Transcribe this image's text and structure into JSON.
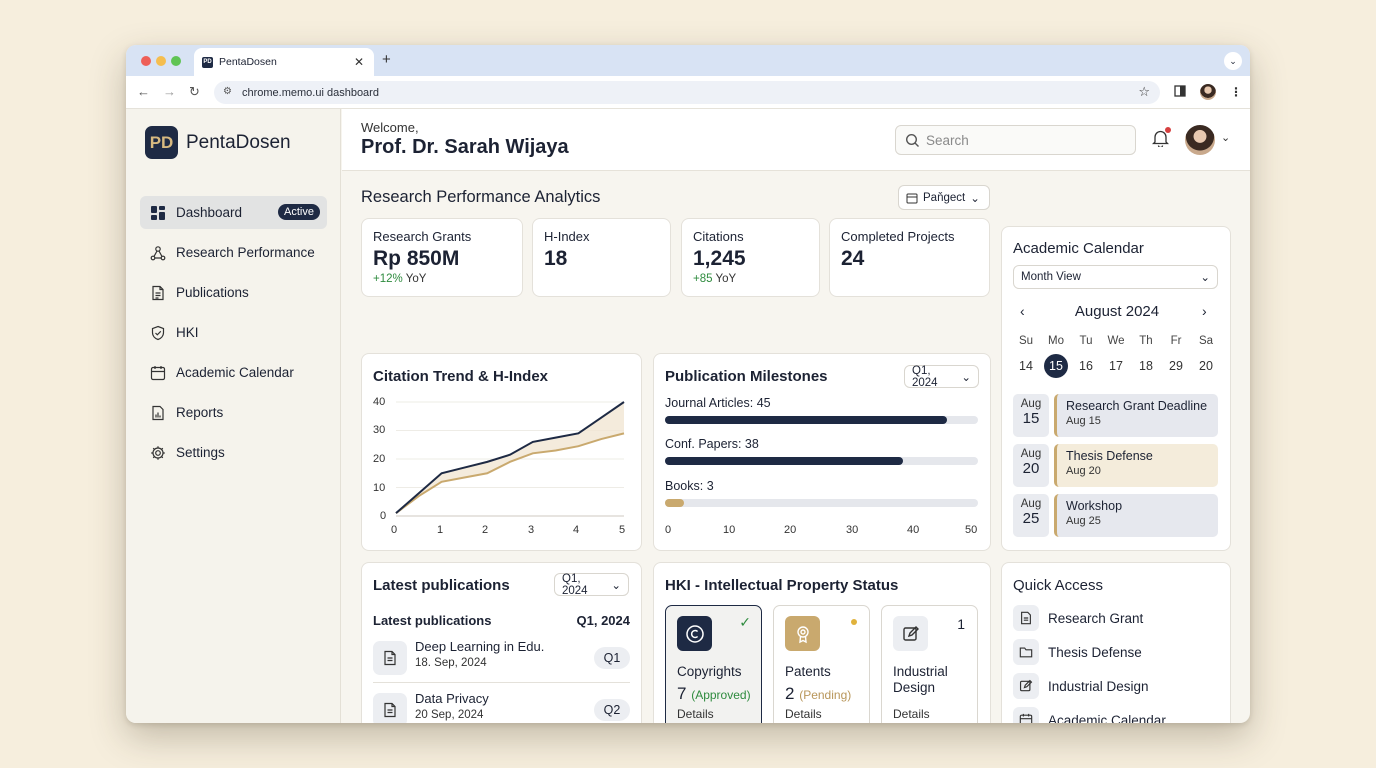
{
  "browser": {
    "tab_title": "PentaDosen",
    "tab_favicon": "PD",
    "url": "chrome.memo.ui dashboard"
  },
  "sidebar": {
    "logo_mark": "PD",
    "app_name": "PentaDosen",
    "active_badge": "Active",
    "items": [
      {
        "label": "Dashboard",
        "icon": "grid-icon"
      },
      {
        "label": "Research Performance",
        "icon": "network-icon"
      },
      {
        "label": "Publications",
        "icon": "document-icon"
      },
      {
        "label": "HKI",
        "icon": "shield-icon"
      },
      {
        "label": "Academic Calendar",
        "icon": "calendar-icon"
      },
      {
        "label": "Reports",
        "icon": "report-icon"
      },
      {
        "label": "Settings",
        "icon": "gear-icon"
      }
    ]
  },
  "header": {
    "welcome": "Welcome,",
    "user_name": "Prof. Dr. Sarah Wijaya",
    "search_placeholder": "Search"
  },
  "analytics": {
    "title": "Research Performance Analytics",
    "filter": "Paňgect",
    "kpis": [
      {
        "label": "Research Grants",
        "value": "Rp 850M",
        "delta": "+12%",
        "delta_suffix": "YoY"
      },
      {
        "label": "H-Index",
        "value": "18"
      },
      {
        "label": "Citations",
        "value": "1,245",
        "delta": "+85",
        "delta_suffix": "YoY"
      },
      {
        "label": "Completed Projects",
        "value": "24"
      }
    ]
  },
  "citation_chart": {
    "title": "Citation Trend & H-Index",
    "y_ticks": [
      "40",
      "30",
      "20",
      "10",
      "0"
    ],
    "x_ticks": [
      "0",
      "1",
      "2",
      "3",
      "4",
      "5"
    ]
  },
  "chart_data": {
    "type": "line",
    "title": "Citation Trend & H-Index",
    "x": [
      0,
      0.5,
      1,
      1.5,
      2,
      2.5,
      3,
      3.5,
      4,
      4.5,
      5
    ],
    "ylim": [
      0,
      40
    ],
    "xlim": [
      0,
      5
    ],
    "series": [
      {
        "values": [
          1,
          8,
          15,
          17,
          19,
          21.5,
          26,
          27.5,
          29,
          34.5,
          40
        ],
        "color": "#1e2a44"
      },
      {
        "values": [
          1,
          7,
          12,
          13.5,
          15,
          19,
          22,
          23,
          24.5,
          27,
          29
        ],
        "color": "#c9a96e",
        "fill": "#f1e6d3"
      }
    ]
  },
  "milestones": {
    "title": "Publication Milestones",
    "filter": "Q1, 2024",
    "items": [
      {
        "label": "Journal Articles:",
        "value": "45",
        "num": 45,
        "color": "#1e2a44"
      },
      {
        "label": "Conf. Papers:",
        "value": "38",
        "num": 38,
        "color": "#1e2a44"
      },
      {
        "label": "Books:",
        "value": "3",
        "num": 3,
        "color": "#c9a96e"
      }
    ],
    "axis": [
      "0",
      "10",
      "20",
      "30",
      "40",
      "50"
    ],
    "max": 50
  },
  "calendar": {
    "title": "Academic Calendar",
    "view": "Month View",
    "month": "August 2024",
    "dows": [
      "Su",
      "Mo",
      "Tu",
      "We",
      "Th",
      "Fr",
      "Sa"
    ],
    "days": [
      "14",
      "15",
      "16",
      "17",
      "18",
      "29",
      "20"
    ],
    "selected": "15",
    "events": [
      {
        "mon": "Aug",
        "day": "15",
        "title": "Research Grant Deadline",
        "sub": "Aug 15",
        "bg": "#e6e8ee"
      },
      {
        "mon": "Aug",
        "day": "20",
        "title": "Thesis Defense",
        "sub": "Aug 20",
        "bg": "#f4ecdb"
      },
      {
        "mon": "Aug",
        "day": "25",
        "title": "Workshop",
        "sub": "Aug 25",
        "bg": "#e6e8ee"
      }
    ]
  },
  "latest": {
    "title": "Latest publications",
    "filter": "Q1, 2024",
    "sub_title": "Latest publications",
    "sub_period": "Q1, 2024",
    "items": [
      {
        "title": "Deep Learning in Edu.",
        "date": "18. Sep, 2024",
        "quarter": "Q1"
      },
      {
        "title": "Data Privacy",
        "date": "20 Sep, 2024",
        "quarter": "Q2"
      }
    ]
  },
  "hki": {
    "title": "HKI - Intellectual Property Status",
    "cards": [
      {
        "name": "Copyrights",
        "count": "7",
        "status": "(Approved)",
        "details": "Details"
      },
      {
        "name": "Patents",
        "count": "2",
        "status": "(Pending)",
        "details": "Details"
      },
      {
        "name": "Industrial Design",
        "badge": "1",
        "details": "Details"
      }
    ]
  },
  "quick": {
    "title": "Quick Access",
    "items": [
      {
        "label": "Research Grant",
        "icon": "document-icon"
      },
      {
        "label": "Thesis Defense",
        "icon": "folder-icon"
      },
      {
        "label": "Industrial Design",
        "icon": "edit-icon"
      },
      {
        "label": "Academic Calendar",
        "icon": "calendar-icon"
      }
    ]
  }
}
